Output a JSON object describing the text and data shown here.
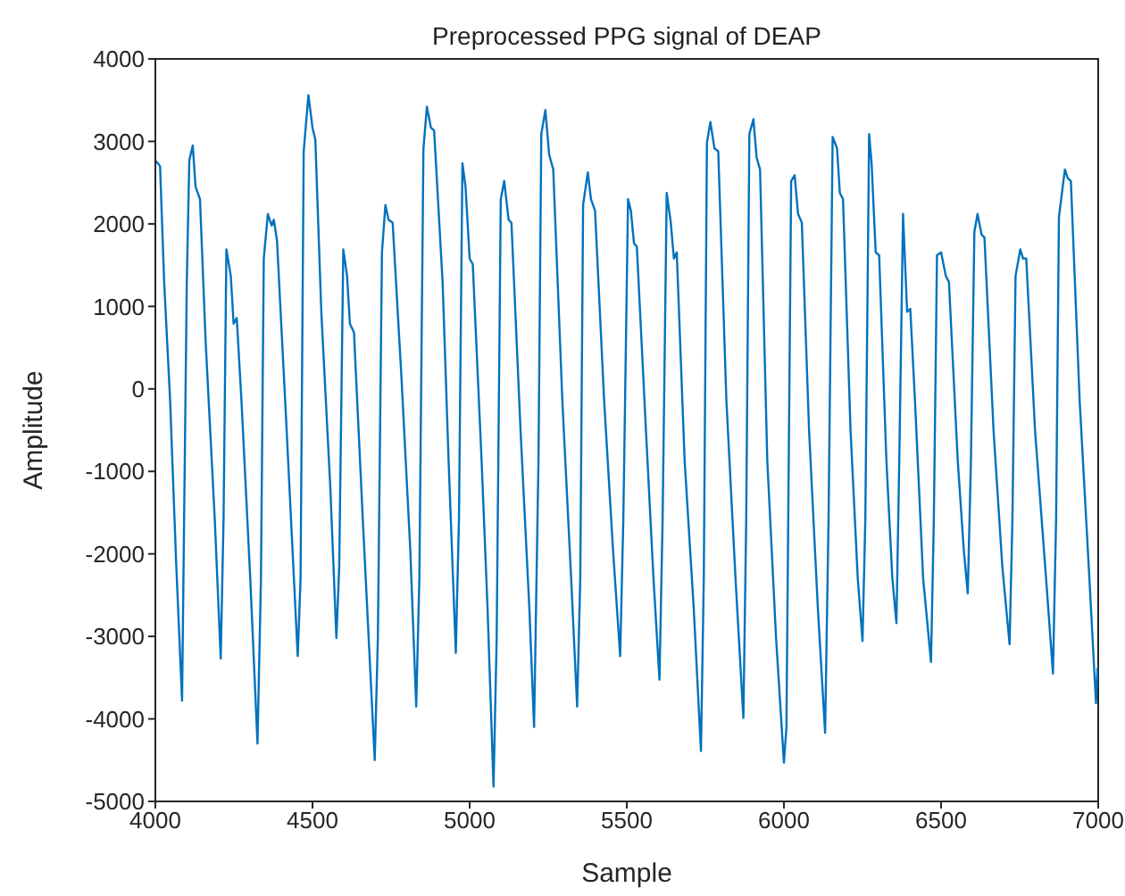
{
  "chart_data": {
    "type": "line",
    "title": "Preprocessed PPG signal of DEAP",
    "xlabel": "Sample",
    "ylabel": "Amplitude",
    "xlim": [
      4000,
      7000
    ],
    "xticks": [
      4000,
      4500,
      5000,
      5500,
      6000,
      6500,
      7000
    ],
    "ylim": [
      -5000,
      4000
    ],
    "yticks": [
      -5000,
      -4000,
      -3000,
      -2000,
      -1000,
      0,
      1000,
      2000,
      3000,
      4000
    ],
    "grid": false,
    "marker": "none",
    "line_style": "solid",
    "series": [
      {
        "color": "#0072bd",
        "x": [
          4000,
          4015,
          4028,
          4047,
          4066,
          4085,
          4100,
          4108,
          4119,
          4128,
          4142,
          4160,
          4189,
          4208,
          4217,
          4226,
          4240,
          4249,
          4259,
          4274,
          4302,
          4325,
          4336,
          4345,
          4358,
          4370,
          4377,
          4387,
          4415,
          4453,
          4462,
          4472,
          4487,
          4500,
          4509,
          4528,
          4557,
          4576,
          4585,
          4598,
          4610,
          4619,
          4632,
          4660,
          4698,
          4708,
          4721,
          4732,
          4742,
          4755,
          4783,
          4811,
          4830,
          4840,
          4853,
          4864,
          4877,
          4887,
          4914,
          4933,
          4956,
          4966,
          4977,
          4987,
          5000,
          5010,
          5038,
          5057,
          5076,
          5086,
          5099,
          5110,
          5124,
          5133,
          5162,
          5190,
          5205,
          5219,
          5228,
          5241,
          5253,
          5266,
          5295,
          5323,
          5342,
          5352,
          5361,
          5376,
          5386,
          5399,
          5428,
          5456,
          5479,
          5489,
          5504,
          5513,
          5523,
          5532,
          5561,
          5585,
          5604,
          5614,
          5627,
          5640,
          5650,
          5659,
          5684,
          5713,
          5736,
          5745,
          5755,
          5766,
          5779,
          5791,
          5817,
          5846,
          5871,
          5880,
          5890,
          5903,
          5913,
          5924,
          5947,
          5975,
          6000,
          6008,
          6023,
          6034,
          6045,
          6057,
          6080,
          6108,
          6131,
          6142,
          6155,
          6169,
          6178,
          6188,
          6212,
          6235,
          6250,
          6259,
          6271,
          6279,
          6292,
          6303,
          6326,
          6345,
          6358,
          6367,
          6379,
          6392,
          6402,
          6417,
          6443,
          6468,
          6477,
          6487,
          6500,
          6515,
          6525,
          6553,
          6572,
          6585,
          6595,
          6606,
          6616,
          6629,
          6638,
          6667,
          6695,
          6718,
          6727,
          6737,
          6752,
          6761,
          6771,
          6799,
          6837,
          6856,
          6866,
          6875,
          6894,
          6903,
          6913,
          6941,
          6970,
          6993,
          6998
        ],
        "values": [
          2770,
          2700,
          1295,
          -145,
          -2090,
          -3780,
          1295,
          2770,
          2950,
          2450,
          2300,
          575,
          -1580,
          -3270,
          -1580,
          1690,
          1370,
          790,
          860,
          -145,
          -2300,
          -4300,
          -2300,
          1580,
          2120,
          1980,
          2050,
          1800,
          -290,
          -3240,
          -2300,
          2880,
          3560,
          3165,
          3020,
          935,
          -1220,
          -3020,
          -2160,
          1690,
          1370,
          790,
          685,
          -1580,
          -4500,
          -3020,
          1655,
          2230,
          2050,
          2015,
          145,
          -1940,
          -3850,
          -2300,
          2915,
          3420,
          3165,
          3130,
          1295,
          -865,
          -3200,
          -1580,
          2735,
          2445,
          1580,
          1510,
          -865,
          -2660,
          -4820,
          -3020,
          2300,
          2520,
          2050,
          2015,
          -505,
          -2660,
          -4100,
          -865,
          3090,
          3380,
          2840,
          2660,
          -145,
          -2300,
          -3850,
          -2300,
          2230,
          2625,
          2300,
          2160,
          -145,
          -1940,
          -3240,
          -1580,
          2300,
          2160,
          1765,
          1725,
          -505,
          -2300,
          -3525,
          -1580,
          2375,
          2015,
          1580,
          1655,
          -865,
          -2660,
          -4390,
          -2300,
          2985,
          3235,
          2915,
          2880,
          -145,
          -2300,
          -3990,
          -1580,
          3090,
          3270,
          2805,
          2660,
          -865,
          -3020,
          -4530,
          -4100,
          2520,
          2590,
          2120,
          2015,
          -505,
          -2660,
          -4170,
          -1580,
          3055,
          2915,
          2375,
          2300,
          -505,
          -2300,
          -3055,
          -1580,
          3090,
          2735,
          1655,
          1620,
          -865,
          -2300,
          -2840,
          -865,
          2120,
          935,
          970,
          -145,
          -2300,
          -3310,
          -1580,
          1620,
          1655,
          1370,
          1295,
          -865,
          -1940,
          -2480,
          -865,
          1905,
          2120,
          1870,
          1835,
          -505,
          -2160,
          -3095,
          -1580,
          1370,
          1690,
          1580,
          1580,
          -505,
          -2445,
          -3450,
          -1580,
          2085,
          2660,
          2555,
          2520,
          -145,
          -2160,
          -3810,
          -3380
        ]
      }
    ]
  }
}
